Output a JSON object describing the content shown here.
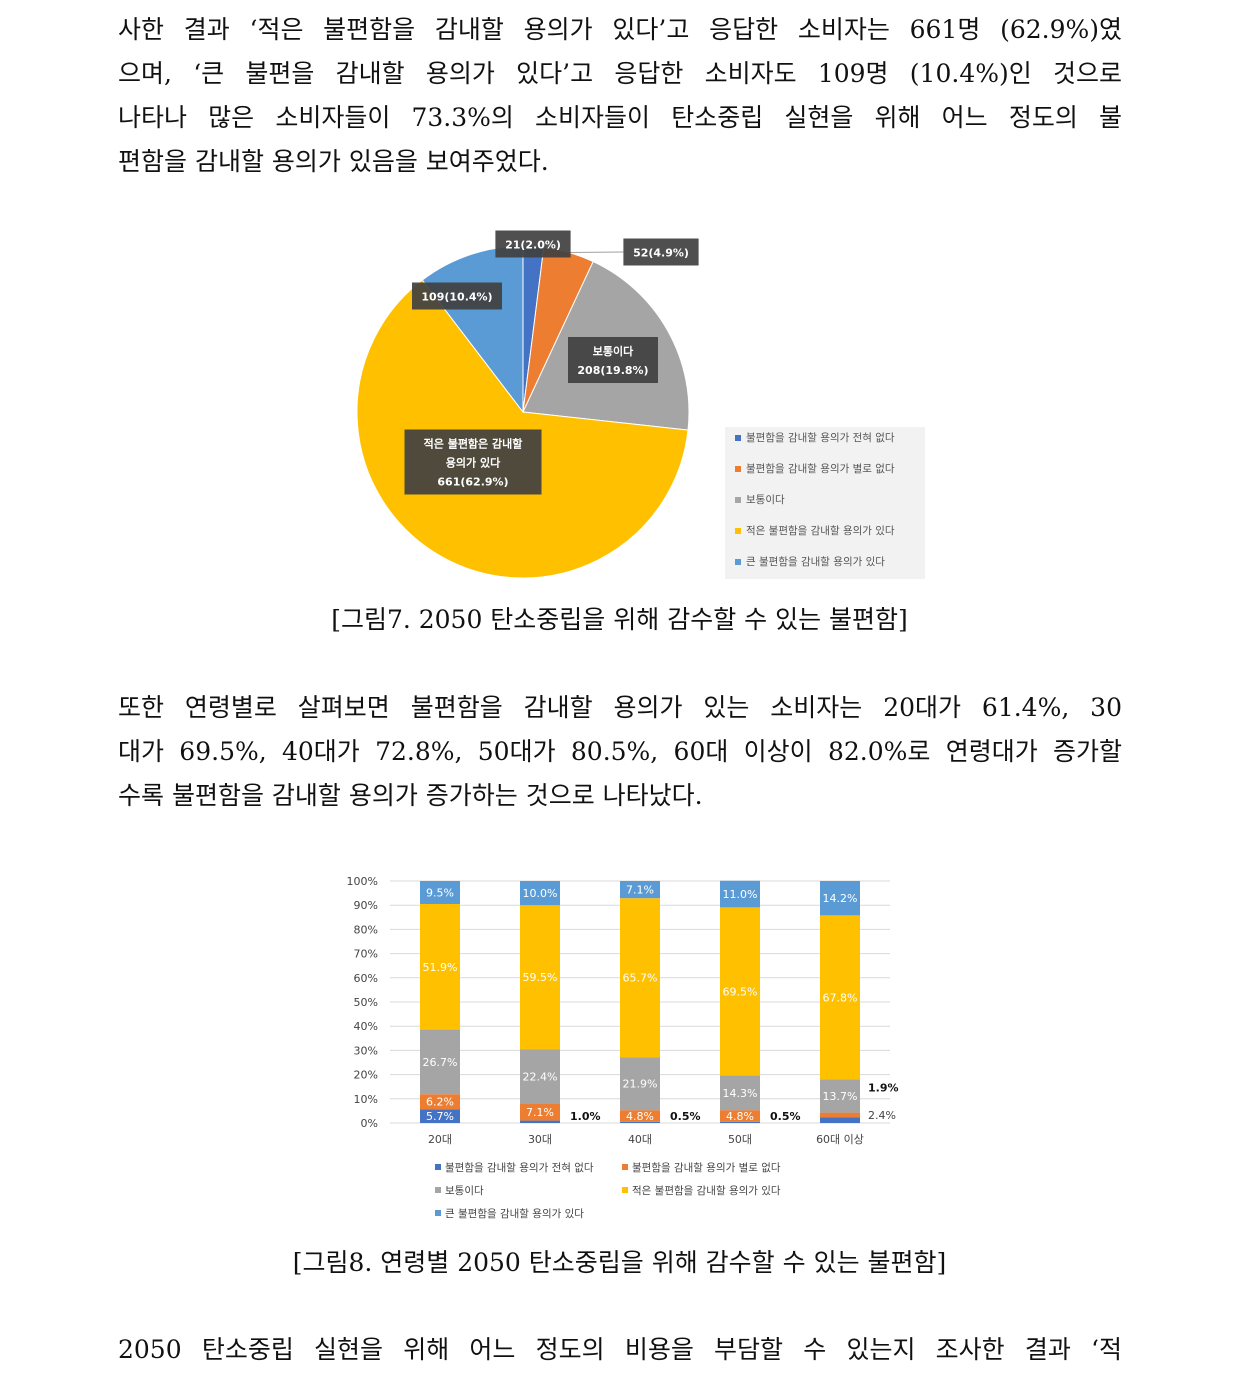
{
  "paragraph1": {
    "lines": [
      "사한 결과 ‘적은 불편함을 감내할 용의가 있다’고 응답한 소비자는 661명 (62.9%)였",
      "으며, ‘큰 불편을 감내할 용의가 있다’고 응답한 소비자도 109명 (10.4%)인 것으로",
      "나타나 많은 소비자들이 73.3%의 소비자들이 탄소중립 실현을 위해 어느 정도의 불",
      "편함을 감내할 용의가 있음을 보여주었다."
    ]
  },
  "figure7": {
    "caption": "[그림7. 2050 탄소중립을 위해 감수할 수 있는 불편함]"
  },
  "paragraph2": {
    "lines": [
      "또한 연령별로 살펴보면 불편함을 감내할 용의가 있는 소비자는 20대가 61.4%, 30",
      "대가 69.5%, 40대가 72.8%, 50대가 80.5%, 60대 이상이 82.0%로 연령대가 증가할",
      "수록 불편함을 감내할 용의가 증가하는 것으로 나타났다."
    ]
  },
  "figure8": {
    "caption": "[그림8. 연령별 2050 탄소중립을 위해 감수할 수 있는 불편함]"
  },
  "paragraph3": {
    "lines": [
      "2050 탄소중립 실현을 위해 어느 정도의 비용을 부담할 수 있는지 조사한 결과 ‘적"
    ]
  },
  "chart_data": [
    {
      "type": "pie",
      "title": "",
      "legend_position": "bottom-right",
      "slices": [
        {
          "name": "불편함을 감내할 용의가 전혀 없다",
          "value": 21,
          "percent": 2.0,
          "label": "21(2.0%)",
          "color": "#4472c4"
        },
        {
          "name": "불편함을 감내할 용의가 별로 없다",
          "value": 52,
          "percent": 4.9,
          "label": "52(4.9%)",
          "color": "#ed7d31"
        },
        {
          "name": "보통이다",
          "value": 208,
          "percent": 19.8,
          "label_lines": [
            "보통이다",
            "208(19.8%)"
          ],
          "color": "#a5a5a5"
        },
        {
          "name": "적은 불편함을 감내할 용의가 있다",
          "value": 661,
          "percent": 62.9,
          "label_lines": [
            "적은 불편함은 감내할",
            "용의가 있다",
            "661(62.9%)"
          ],
          "color": "#ffc000"
        },
        {
          "name": "큰 불편함을 감내할 용의가 있다",
          "value": 109,
          "percent": 10.4,
          "label": "109(10.4%)",
          "color": "#5b9bd5"
        }
      ]
    },
    {
      "type": "bar",
      "stacked": true,
      "percent_axis": true,
      "title": "",
      "ylim": [
        0,
        100
      ],
      "yticks": [
        "0%",
        "10%",
        "20%",
        "30%",
        "40%",
        "50%",
        "60%",
        "70%",
        "80%",
        "90%",
        "100%"
      ],
      "grid": true,
      "legend_position": "bottom",
      "categories": [
        "20대",
        "30대",
        "40대",
        "50대",
        "60대 이상"
      ],
      "series": [
        {
          "name": "불편함을 감내할 용의가 전혀 없다",
          "color": "#4472c4",
          "values": [
            5.7,
            1.0,
            0.5,
            0.5,
            2.4
          ],
          "labels": [
            "5.7%",
            "1.0%",
            "0.5%",
            "0.5%",
            "2.4%"
          ]
        },
        {
          "name": "불편함을 감내할 용의가 별로 없다",
          "color": "#ed7d31",
          "values": [
            6.2,
            7.1,
            4.8,
            4.8,
            1.9
          ],
          "labels": [
            "6.2%",
            "7.1%",
            "4.8%",
            "4.8%",
            "1.9%"
          ]
        },
        {
          "name": "보통이다",
          "color": "#a5a5a5",
          "values": [
            26.7,
            22.4,
            21.9,
            14.3,
            13.7
          ],
          "labels": [
            "26.7%",
            "22.4%",
            "21.9%",
            "14.3%",
            "13.7%"
          ]
        },
        {
          "name": "적은 불편함을 감내할 용의가 있다",
          "color": "#ffc000",
          "values": [
            51.9,
            59.5,
            65.7,
            69.5,
            67.8
          ],
          "labels": [
            "51.9%",
            "59.5%",
            "65.7%",
            "69.5%",
            "67.8%"
          ]
        },
        {
          "name": "큰 불편함을 감내할 용의가 있다",
          "color": "#5b9bd5",
          "values": [
            9.5,
            10.0,
            7.1,
            11.0,
            14.2
          ],
          "labels": [
            "9.5%",
            "10.0%",
            "7.1%",
            "11.0%",
            "14.2%"
          ]
        }
      ]
    }
  ]
}
